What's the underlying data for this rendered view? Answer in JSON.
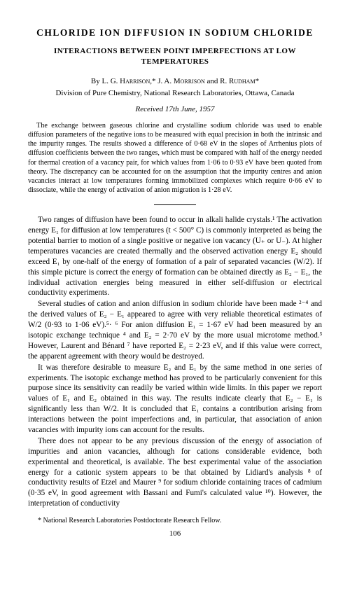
{
  "title": "CHLORIDE ION DIFFUSION IN SODIUM CHLORIDE",
  "subtitle": "INTERACTIONS BETWEEN POINT IMPERFECTIONS AT LOW TEMPERATURES",
  "authors_line": "By L. G. Harrison,* J. A. Morrison and R. Rudham*",
  "affiliation": "Division of Pure Chemistry, National Research Laboratories, Ottawa, Canada",
  "received": "Received 17th June, 1957",
  "abstract": "The exchange between gaseous chlorine and crystalline sodium chloride was used to enable diffusion parameters of the negative ions to be measured with equal precision in both the intrinsic and the impurity ranges. The results showed a difference of 0·68 eV in the slopes of Arrhenius plots of diffusion coefficients between the two ranges, which must be compared with half of the energy needed for thermal creation of a vacancy pair, for which values from 1·06 to 0·93 eV have been quoted from theory. The discrepancy can be accounted for on the assumption that the impurity centres and anion vacancies interact at low temperatures forming immobilized complexes which require 0·66 eV to dissociate, while the energy of activation of anion migration is 1·28 eV.",
  "para1": "Two ranges of diffusion have been found to occur in alkali halide crystals.¹ The activation energy E₁ for diffusion at low temperatures (t < 500° C) is commonly interpreted as being the potential barrier to motion of a single positive or negative ion vacancy (U₊ or U₋). At higher temperatures vacancies are created thermally and the observed activation energy E₂ should exceed E₁ by one-half of the energy of formation of a pair of separated vacancies (W/2). If this simple picture is correct the energy of formation can be obtained directly as E₂ − E₁, the individual activation energies being measured in either self-diffusion or electrical conductivity experiments.",
  "para2": "Several studies of cation and anion diffusion in sodium chloride have been made ²⁻⁴ and the derived values of E₂ − E₁ appeared to agree with very reliable theoretical estimates of W/2 (0·93 to 1·06 eV).⁵· ⁶ For anion diffusion E₁ = 1·67 eV had been measured by an isotopic exchange technique ⁴ and E₂ = 2·70 eV by the more usual microtome method.³ However, Laurent and Bénard ⁷ have reported E₂ = 2·23 eV, and if this value were correct, the apparent agreement with theory would be destroyed.",
  "para3": "It was therefore desirable to measure E₂ and E₁ by the same method in one series of experiments. The isotopic exchange method has proved to be particularly convenient for this purpose since its sensitivity can readily be varied within wide limits. In this paper we report values of E₁ and E₂ obtained in this way. The results indicate clearly that E₂ − E₁ is significantly less than W/2. It is concluded that E₁ contains a contribution arising from interactions between the point imperfections and, in particular, that association of anion vacancies with impurity ions can account for the results.",
  "para4": "There does not appear to be any previous discussion of the energy of association of impurities and anion vacancies, although for cations considerable evidence, both experimental and theoretical, is available. The best experimental value of the association energy for a cationic system appears to be that obtained by Lidiard's analysis ⁸ of conductivity results of Etzel and Maurer ⁹ for sodium chloride containing traces of cadmium (0·35 eV, in good agreement with Bassani and Fumi's calculated value ¹⁰). However, the interpretation of conductivity",
  "footnote": "* National Research Laboratories Postdoctorate Research Fellow.",
  "page_number": "106"
}
